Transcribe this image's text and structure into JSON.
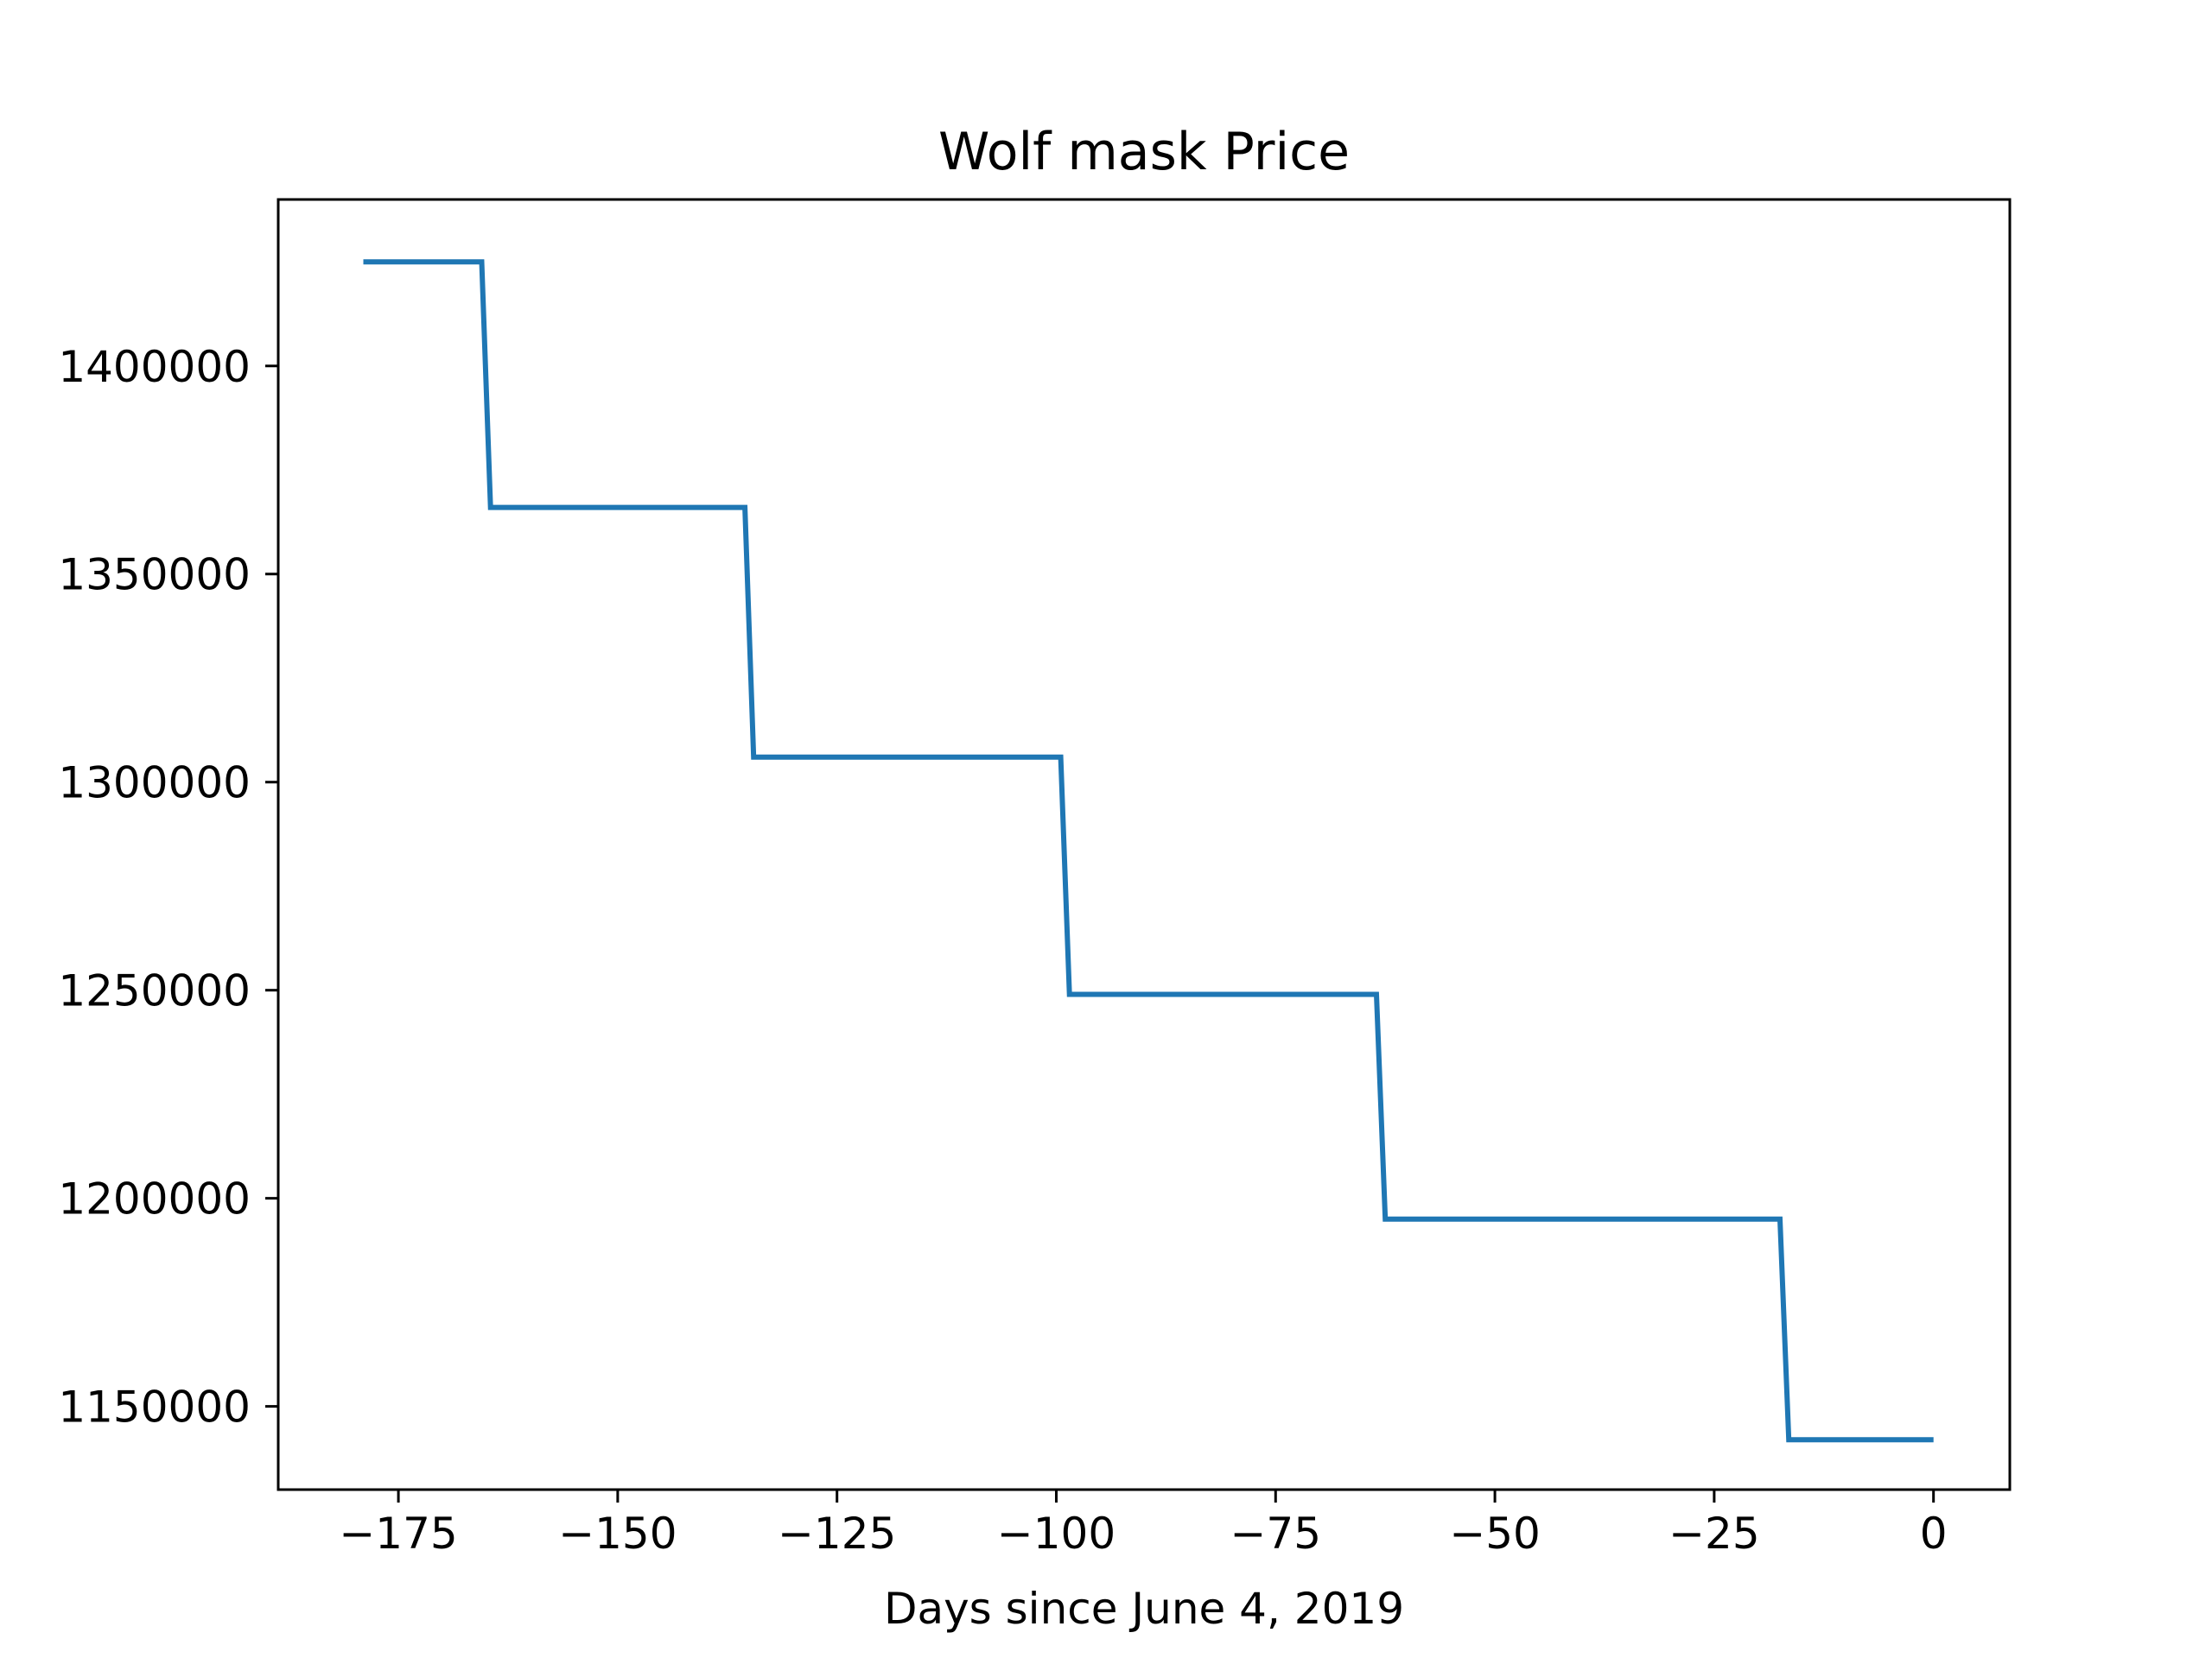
{
  "chart_data": {
    "type": "line",
    "title": "Wolf mask Price",
    "xlabel": "Days since June 4, 2019",
    "ylabel": "",
    "xlim": [
      -188.7,
      8.7
    ],
    "ylim": [
      1130000,
      1440000
    ],
    "grid": false,
    "line_color": "#1f77b4",
    "xticks": [
      -175,
      -150,
      -125,
      -100,
      -75,
      -50,
      -25,
      0
    ],
    "xtick_labels": [
      "−175",
      "−150",
      "−125",
      "−100",
      "−75",
      "−50",
      "−25",
      "0"
    ],
    "yticks": [
      1150000,
      1200000,
      1250000,
      1300000,
      1350000,
      1400000
    ],
    "ytick_labels": [
      "1150000",
      "1200000",
      "1250000",
      "1300000",
      "1350000",
      "1400000"
    ],
    "series": [
      {
        "x": [
          -179,
          -165.5,
          -164.5,
          -135.5,
          -134.5,
          -99.5,
          -98.5,
          -63.5,
          -62.5,
          -17.5,
          -16.5,
          0
        ],
        "y": [
          1425000,
          1425000,
          1366000,
          1366000,
          1306000,
          1306000,
          1249000,
          1249000,
          1195000,
          1195000,
          1142000,
          1142000
        ]
      }
    ]
  }
}
